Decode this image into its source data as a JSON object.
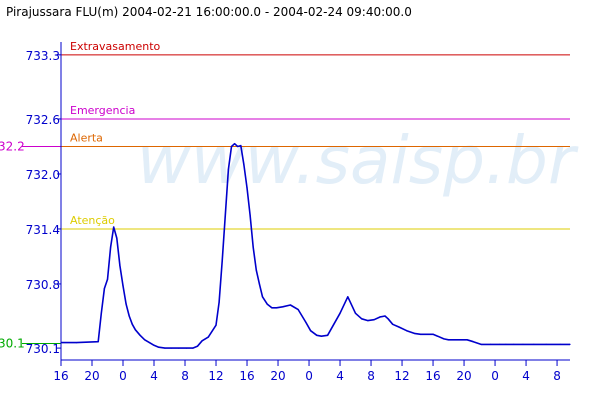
{
  "chart_data": {
    "type": "line",
    "title": "Pirajussara FLU(m) 2004-02-21 16:00:00.0 - 2004-02-24 09:40:00.0",
    "watermark": "www.saisp.br",
    "xlabel": "",
    "ylabel": "",
    "ylim": [
      729.97,
      733.44
    ],
    "x_unit": "hours since 2004-02-21 16:00",
    "xlim": [
      0,
      65.67
    ],
    "grid": false,
    "legend": "none",
    "x_ticks": [
      {
        "x": 0,
        "label": "16"
      },
      {
        "x": 4,
        "label": "20"
      },
      {
        "x": 8,
        "label": "0"
      },
      {
        "x": 12,
        "label": "4"
      },
      {
        "x": 16,
        "label": "8"
      },
      {
        "x": 20,
        "label": "12"
      },
      {
        "x": 24,
        "label": "16"
      },
      {
        "x": 28,
        "label": "20"
      },
      {
        "x": 32,
        "label": "0"
      },
      {
        "x": 36,
        "label": "4"
      },
      {
        "x": 40,
        "label": "8"
      },
      {
        "x": 44,
        "label": "12"
      },
      {
        "x": 48,
        "label": "16"
      },
      {
        "x": 52,
        "label": "20"
      },
      {
        "x": 56,
        "label": "0"
      },
      {
        "x": 60,
        "label": "4"
      },
      {
        "x": 64,
        "label": "8"
      }
    ],
    "y_ticks": [
      {
        "y": 730.1,
        "label": "730.1"
      },
      {
        "y": 730.8,
        "label": "730.8"
      },
      {
        "y": 731.4,
        "label": "731.4"
      },
      {
        "y": 732.0,
        "label": "732.0"
      },
      {
        "y": 732.6,
        "label": "732.6"
      },
      {
        "y": 733.3,
        "label": "733.3"
      }
    ],
    "thresholds": [
      {
        "name": "Extravasamento",
        "value": 733.3,
        "color": "#cc0000"
      },
      {
        "name": "Emergencia",
        "value": 732.6,
        "color": "#cc00cc"
      },
      {
        "name": "Alerta",
        "value": 732.3,
        "color": "#dd6600"
      },
      {
        "name": "Atenção",
        "value": 731.4,
        "color": "#ddcc00"
      }
    ],
    "markers": [
      {
        "label": "32.2",
        "value": 732.3,
        "color": "#cc00cc"
      },
      {
        "label": "30.1",
        "value": 730.15,
        "color": "#00aa00"
      }
    ],
    "series": [
      {
        "color": "#0000cc",
        "x": [
          0,
          2,
          4.8,
          5.2,
          5.6,
          6.0,
          6.4,
          6.8,
          7.2,
          7.6,
          8.0,
          8.4,
          8.8,
          9.2,
          9.6,
          10.2,
          10.8,
          11.4,
          12.0,
          12.6,
          13.4,
          14.2,
          15.2,
          16.2,
          17.0,
          17.6,
          18.2,
          19.0,
          20.0,
          20.4,
          20.8,
          21.2,
          21.6,
          22.0,
          22.4,
          22.8,
          23.2,
          23.6,
          24.0,
          24.4,
          24.8,
          25.2,
          25.6,
          26.0,
          26.6,
          27.2,
          27.8,
          28.6,
          29.6,
          30.6,
          31.6,
          32.2,
          33.0,
          33.6,
          34.4,
          35.2,
          36.0,
          37.0,
          38.0,
          38.8,
          39.6,
          40.4,
          41.2,
          41.8,
          42.2,
          42.8,
          43.6,
          44.6,
          45.6,
          46.4,
          47.2,
          48.0,
          48.6,
          49.4,
          50.0,
          50.8,
          51.6,
          52.4,
          53.2,
          54.2,
          55.4,
          56.6,
          57.4,
          58.4,
          59.6,
          61.0,
          62.6,
          64.4,
          65.67
        ],
        "values": [
          730.16,
          730.16,
          730.17,
          730.48,
          730.75,
          730.85,
          731.2,
          731.42,
          731.3,
          731.0,
          730.78,
          730.58,
          730.45,
          730.36,
          730.3,
          730.24,
          730.19,
          730.16,
          730.13,
          730.11,
          730.1,
          730.1,
          730.1,
          730.1,
          730.1,
          730.12,
          730.18,
          730.22,
          730.35,
          730.6,
          731.05,
          731.55,
          732.05,
          732.3,
          732.33,
          732.3,
          732.31,
          732.1,
          731.85,
          731.55,
          731.2,
          730.95,
          730.8,
          730.66,
          730.58,
          730.54,
          730.54,
          730.55,
          730.57,
          730.52,
          730.38,
          730.29,
          730.24,
          730.23,
          730.24,
          730.36,
          730.48,
          730.66,
          730.48,
          730.42,
          730.4,
          730.41,
          730.44,
          730.45,
          730.42,
          730.36,
          730.33,
          730.29,
          730.26,
          730.25,
          730.25,
          730.25,
          730.23,
          730.2,
          730.19,
          730.19,
          730.19,
          730.19,
          730.17,
          730.14,
          730.14,
          730.14,
          730.14,
          730.14,
          730.14,
          730.14,
          730.14,
          730.14,
          730.14
        ]
      }
    ]
  }
}
